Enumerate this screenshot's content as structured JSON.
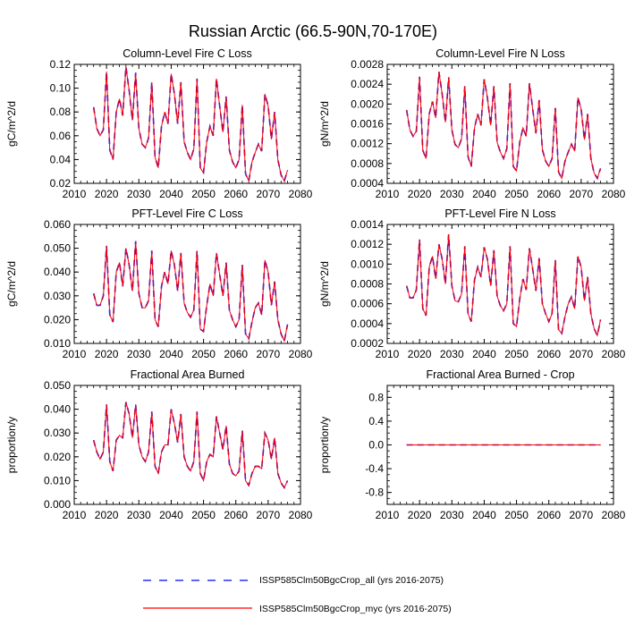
{
  "title": "Russian Arctic (66.5-90N,70-170E)",
  "legend": {
    "entries": [
      {
        "label": "ISSP585Clm50BgcCrop_all (yrs 2016-2075)",
        "color": "#0000ff",
        "dash": "dashed"
      },
      {
        "label": "ISSP585Clm50BgcCrop_myc (yrs 2016-2075)",
        "color": "#ff0000",
        "dash": "solid"
      }
    ]
  },
  "chart_data": [
    {
      "type": "line",
      "title": "Column-Level Fire C Loss",
      "xlabel": "",
      "ylabel": "gC/m^2/d",
      "xlim": [
        2010,
        2080
      ],
      "ylim": [
        0.02,
        0.12
      ],
      "xticks": [
        2010,
        2020,
        2030,
        2040,
        2050,
        2060,
        2070,
        2080
      ],
      "yticks": [
        0.02,
        0.04,
        0.06,
        0.08,
        0.1,
        0.12
      ],
      "ytick_labels": [
        "0.02",
        "0.04",
        "0.06",
        "0.08",
        "0.10",
        "0.12"
      ],
      "x_start": 2016,
      "series": [
        {
          "name": "ISSP585Clm50BgcCrop_all",
          "color": "#0000ff",
          "values": [
            0.084,
            0.066,
            0.06,
            0.065,
            0.114,
            0.048,
            0.04,
            0.08,
            0.091,
            0.077,
            0.118,
            0.098,
            0.073,
            0.113,
            0.066,
            0.053,
            0.05,
            0.058,
            0.105,
            0.042,
            0.033,
            0.068,
            0.08,
            0.07,
            0.112,
            0.095,
            0.07,
            0.105,
            0.055,
            0.046,
            0.04,
            0.049,
            0.108,
            0.033,
            0.029,
            0.055,
            0.068,
            0.06,
            0.108,
            0.085,
            0.063,
            0.093,
            0.048,
            0.038,
            0.033,
            0.04,
            0.086,
            0.028,
            0.022,
            0.038,
            0.046,
            0.053,
            0.047,
            0.095,
            0.085,
            0.057,
            0.08,
            0.04,
            0.027,
            0.022,
            0.031
          ]
        },
        {
          "name": "ISSP585Clm50BgcCrop_myc",
          "color": "#ff0000",
          "values": [
            0.084,
            0.066,
            0.06,
            0.065,
            0.114,
            0.048,
            0.04,
            0.08,
            0.091,
            0.077,
            0.118,
            0.098,
            0.073,
            0.113,
            0.066,
            0.053,
            0.05,
            0.058,
            0.105,
            0.042,
            0.033,
            0.068,
            0.08,
            0.07,
            0.112,
            0.095,
            0.07,
            0.105,
            0.055,
            0.046,
            0.04,
            0.049,
            0.108,
            0.033,
            0.029,
            0.055,
            0.068,
            0.06,
            0.108,
            0.085,
            0.063,
            0.093,
            0.048,
            0.038,
            0.033,
            0.04,
            0.086,
            0.028,
            0.022,
            0.038,
            0.046,
            0.053,
            0.047,
            0.095,
            0.085,
            0.057,
            0.08,
            0.04,
            0.027,
            0.022,
            0.031
          ]
        }
      ]
    },
    {
      "type": "line",
      "title": "Column-Level Fire N Loss",
      "xlabel": "",
      "ylabel": "gN/m^2/d",
      "xlim": [
        2010,
        2080
      ],
      "ylim": [
        0.0004,
        0.0028
      ],
      "xticks": [
        2010,
        2020,
        2030,
        2040,
        2050,
        2060,
        2070,
        2080
      ],
      "yticks": [
        0.0004,
        0.0008,
        0.0012,
        0.0016,
        0.002,
        0.0024,
        0.0028
      ],
      "ytick_labels": [
        "0.0004",
        "0.0008",
        "0.0012",
        "0.0016",
        "0.0020",
        "0.0024",
        "0.0028"
      ],
      "x_start": 2016,
      "series": [
        {
          "name": "ISSP585Clm50BgcCrop_all",
          "color": "#0000ff",
          "values": [
            0.00188,
            0.00148,
            0.00135,
            0.00145,
            0.00255,
            0.00107,
            0.0009,
            0.0018,
            0.00205,
            0.00172,
            0.00265,
            0.0022,
            0.00163,
            0.00254,
            0.00148,
            0.00118,
            0.00112,
            0.0013,
            0.00236,
            0.00094,
            0.00074,
            0.00152,
            0.0018,
            0.00157,
            0.0025,
            0.00213,
            0.00157,
            0.00236,
            0.00123,
            0.00103,
            0.0009,
            0.0011,
            0.00242,
            0.00074,
            0.00065,
            0.00123,
            0.00152,
            0.00135,
            0.00242,
            0.0019,
            0.00141,
            0.00208,
            0.00108,
            0.00085,
            0.00074,
            0.0009,
            0.00192,
            0.00063,
            0.0005,
            0.00085,
            0.00103,
            0.00119,
            0.00105,
            0.00213,
            0.0019,
            0.00128,
            0.0018,
            0.0009,
            0.00061,
            0.0005,
            0.0007
          ]
        },
        {
          "name": "ISSP585Clm50BgcCrop_myc",
          "color": "#ff0000",
          "values": [
            0.00188,
            0.00148,
            0.00135,
            0.00145,
            0.00255,
            0.00107,
            0.0009,
            0.0018,
            0.00205,
            0.00172,
            0.00265,
            0.0022,
            0.00163,
            0.00254,
            0.00148,
            0.00118,
            0.00112,
            0.0013,
            0.00236,
            0.00094,
            0.00074,
            0.00152,
            0.0018,
            0.00157,
            0.0025,
            0.00213,
            0.00157,
            0.00236,
            0.00123,
            0.00103,
            0.0009,
            0.0011,
            0.00242,
            0.00074,
            0.00065,
            0.00123,
            0.00152,
            0.00135,
            0.00242,
            0.0019,
            0.00141,
            0.00208,
            0.00108,
            0.00085,
            0.00074,
            0.0009,
            0.00192,
            0.00063,
            0.0005,
            0.00085,
            0.00103,
            0.00119,
            0.00105,
            0.00213,
            0.0019,
            0.00128,
            0.0018,
            0.0009,
            0.00061,
            0.0005,
            0.0007
          ]
        }
      ]
    },
    {
      "type": "line",
      "title": "PFT-Level Fire C Loss",
      "xlabel": "",
      "ylabel": "gC/m^2/d",
      "xlim": [
        2010,
        2080
      ],
      "ylim": [
        0.01,
        0.06
      ],
      "xticks": [
        2010,
        2020,
        2030,
        2040,
        2050,
        2060,
        2070,
        2080
      ],
      "yticks": [
        0.01,
        0.02,
        0.03,
        0.04,
        0.05,
        0.06
      ],
      "ytick_labels": [
        "0.010",
        "0.020",
        "0.030",
        "0.040",
        "0.050",
        "0.060"
      ],
      "x_start": 2016,
      "series": [
        {
          "name": "ISSP585Clm50BgcCrop_all",
          "color": "#0000ff",
          "values": [
            0.031,
            0.026,
            0.026,
            0.03,
            0.051,
            0.022,
            0.019,
            0.04,
            0.044,
            0.034,
            0.05,
            0.043,
            0.032,
            0.053,
            0.031,
            0.025,
            0.025,
            0.028,
            0.049,
            0.02,
            0.017,
            0.034,
            0.04,
            0.035,
            0.049,
            0.043,
            0.032,
            0.048,
            0.027,
            0.023,
            0.021,
            0.024,
            0.049,
            0.016,
            0.015,
            0.026,
            0.035,
            0.03,
            0.048,
            0.039,
            0.03,
            0.044,
            0.024,
            0.02,
            0.017,
            0.02,
            0.043,
            0.014,
            0.012,
            0.019,
            0.025,
            0.027,
            0.022,
            0.045,
            0.04,
            0.026,
            0.036,
            0.02,
            0.014,
            0.011,
            0.018
          ]
        },
        {
          "name": "ISSP585Clm50BgcCrop_myc",
          "color": "#ff0000",
          "values": [
            0.031,
            0.026,
            0.026,
            0.03,
            0.051,
            0.022,
            0.019,
            0.04,
            0.044,
            0.034,
            0.05,
            0.043,
            0.032,
            0.053,
            0.031,
            0.025,
            0.025,
            0.028,
            0.049,
            0.02,
            0.017,
            0.034,
            0.04,
            0.035,
            0.049,
            0.043,
            0.032,
            0.048,
            0.027,
            0.023,
            0.021,
            0.024,
            0.049,
            0.016,
            0.015,
            0.026,
            0.035,
            0.03,
            0.048,
            0.039,
            0.03,
            0.044,
            0.024,
            0.02,
            0.017,
            0.02,
            0.043,
            0.014,
            0.012,
            0.019,
            0.025,
            0.027,
            0.022,
            0.045,
            0.04,
            0.026,
            0.036,
            0.02,
            0.014,
            0.011,
            0.018
          ]
        }
      ]
    },
    {
      "type": "line",
      "title": "PFT-Level Fire N Loss",
      "xlabel": "",
      "ylabel": "gN/m^2/d",
      "xlim": [
        2010,
        2080
      ],
      "ylim": [
        0.0002,
        0.0014
      ],
      "xticks": [
        2010,
        2020,
        2030,
        2040,
        2050,
        2060,
        2070,
        2080
      ],
      "yticks": [
        0.0002,
        0.0004,
        0.0006,
        0.0008,
        0.001,
        0.0012,
        0.0014
      ],
      "ytick_labels": [
        "0.0002",
        "0.0004",
        "0.0006",
        "0.0008",
        "0.0010",
        "0.0012",
        "0.0014"
      ],
      "x_start": 2016,
      "series": [
        {
          "name": "ISSP585Clm50BgcCrop_all",
          "color": "#0000ff",
          "values": [
            0.00078,
            0.00066,
            0.00066,
            0.00074,
            0.00125,
            0.00055,
            0.00048,
            0.00097,
            0.00108,
            0.00085,
            0.0012,
            0.00105,
            0.0008,
            0.0013,
            0.00078,
            0.00063,
            0.00062,
            0.0007,
            0.00118,
            0.0005,
            0.00042,
            0.00084,
            0.00097,
            0.00087,
            0.00117,
            0.00105,
            0.00078,
            0.00114,
            0.00068,
            0.00058,
            0.00053,
            0.0006,
            0.00118,
            0.0004,
            0.00037,
            0.00065,
            0.00085,
            0.00074,
            0.00116,
            0.00095,
            0.00073,
            0.00106,
            0.0006,
            0.0005,
            0.00042,
            0.0005,
            0.00104,
            0.00034,
            0.0003,
            0.00047,
            0.0006,
            0.00067,
            0.00055,
            0.00108,
            0.00097,
            0.00063,
            0.00087,
            0.0005,
            0.00035,
            0.00028,
            0.00044
          ]
        },
        {
          "name": "ISSP585Clm50BgcCrop_myc",
          "color": "#ff0000",
          "values": [
            0.00078,
            0.00066,
            0.00066,
            0.00074,
            0.00125,
            0.00055,
            0.00048,
            0.00097,
            0.00108,
            0.00085,
            0.0012,
            0.00105,
            0.0008,
            0.0013,
            0.00078,
            0.00063,
            0.00062,
            0.0007,
            0.00118,
            0.0005,
            0.00042,
            0.00084,
            0.00097,
            0.00087,
            0.00117,
            0.00105,
            0.00078,
            0.00114,
            0.00068,
            0.00058,
            0.00053,
            0.0006,
            0.00118,
            0.0004,
            0.00037,
            0.00065,
            0.00085,
            0.00074,
            0.00116,
            0.00095,
            0.00073,
            0.00106,
            0.0006,
            0.0005,
            0.00042,
            0.0005,
            0.00104,
            0.00034,
            0.0003,
            0.00047,
            0.0006,
            0.00067,
            0.00055,
            0.00108,
            0.00097,
            0.00063,
            0.00087,
            0.0005,
            0.00035,
            0.00028,
            0.00044
          ]
        }
      ]
    },
    {
      "type": "line",
      "title": "Fractional Area Burned",
      "xlabel": "",
      "ylabel": "proportion/y",
      "xlim": [
        2010,
        2080
      ],
      "ylim": [
        0.0,
        0.05
      ],
      "xticks": [
        2010,
        2020,
        2030,
        2040,
        2050,
        2060,
        2070,
        2080
      ],
      "yticks": [
        0.0,
        0.01,
        0.02,
        0.03,
        0.04,
        0.05
      ],
      "ytick_labels": [
        "0.000",
        "0.010",
        "0.020",
        "0.030",
        "0.040",
        "0.050"
      ],
      "x_start": 2016,
      "series": [
        {
          "name": "ISSP585Clm50BgcCrop_all",
          "color": "#0000ff",
          "values": [
            0.027,
            0.022,
            0.019,
            0.022,
            0.042,
            0.018,
            0.014,
            0.027,
            0.029,
            0.028,
            0.043,
            0.038,
            0.028,
            0.042,
            0.025,
            0.02,
            0.018,
            0.022,
            0.039,
            0.016,
            0.013,
            0.022,
            0.025,
            0.025,
            0.04,
            0.034,
            0.026,
            0.038,
            0.02,
            0.016,
            0.014,
            0.018,
            0.039,
            0.013,
            0.01,
            0.018,
            0.021,
            0.02,
            0.037,
            0.03,
            0.023,
            0.033,
            0.017,
            0.013,
            0.012,
            0.014,
            0.031,
            0.01,
            0.008,
            0.013,
            0.016,
            0.016,
            0.015,
            0.03,
            0.027,
            0.019,
            0.028,
            0.013,
            0.009,
            0.007,
            0.01
          ]
        },
        {
          "name": "ISSP585Clm50BgcCrop_myc",
          "color": "#ff0000",
          "values": [
            0.027,
            0.022,
            0.019,
            0.022,
            0.042,
            0.018,
            0.014,
            0.027,
            0.029,
            0.028,
            0.043,
            0.038,
            0.028,
            0.042,
            0.025,
            0.02,
            0.018,
            0.022,
            0.039,
            0.016,
            0.013,
            0.022,
            0.025,
            0.025,
            0.04,
            0.034,
            0.026,
            0.038,
            0.02,
            0.016,
            0.014,
            0.018,
            0.039,
            0.013,
            0.01,
            0.018,
            0.021,
            0.02,
            0.037,
            0.03,
            0.023,
            0.033,
            0.017,
            0.013,
            0.012,
            0.014,
            0.031,
            0.01,
            0.008,
            0.013,
            0.016,
            0.016,
            0.015,
            0.03,
            0.027,
            0.019,
            0.028,
            0.013,
            0.009,
            0.007,
            0.01
          ]
        }
      ]
    },
    {
      "type": "line",
      "title": "Fractional Area Burned - Crop",
      "xlabel": "",
      "ylabel": "proportion/y",
      "xlim": [
        2010,
        2080
      ],
      "ylim": [
        -1.0,
        1.0
      ],
      "xticks": [
        2010,
        2020,
        2030,
        2040,
        2050,
        2060,
        2070,
        2080
      ],
      "yticks": [
        -0.8,
        -0.4,
        0.0,
        0.4,
        0.8
      ],
      "ytick_labels": [
        "-0.8",
        "-0.4",
        "0.0",
        "0.4",
        "0.8"
      ],
      "x_start": 2016,
      "series": [
        {
          "name": "ISSP585Clm50BgcCrop_all",
          "color": "#0000ff",
          "values": [
            0,
            0,
            0,
            0,
            0,
            0,
            0,
            0,
            0,
            0,
            0,
            0,
            0,
            0,
            0,
            0,
            0,
            0,
            0,
            0,
            0,
            0,
            0,
            0,
            0,
            0,
            0,
            0,
            0,
            0,
            0,
            0,
            0,
            0,
            0,
            0,
            0,
            0,
            0,
            0,
            0,
            0,
            0,
            0,
            0,
            0,
            0,
            0,
            0,
            0,
            0,
            0,
            0,
            0,
            0,
            0,
            0,
            0,
            0,
            0,
            0
          ]
        },
        {
          "name": "ISSP585Clm50BgcCrop_myc",
          "color": "#ff0000",
          "values": [
            0,
            0,
            0,
            0,
            0,
            0,
            0,
            0,
            0,
            0,
            0,
            0,
            0,
            0,
            0,
            0,
            0,
            0,
            0,
            0,
            0,
            0,
            0,
            0,
            0,
            0,
            0,
            0,
            0,
            0,
            0,
            0,
            0,
            0,
            0,
            0,
            0,
            0,
            0,
            0,
            0,
            0,
            0,
            0,
            0,
            0,
            0,
            0,
            0,
            0,
            0,
            0,
            0,
            0,
            0,
            0,
            0,
            0,
            0,
            0,
            0
          ]
        }
      ]
    }
  ]
}
